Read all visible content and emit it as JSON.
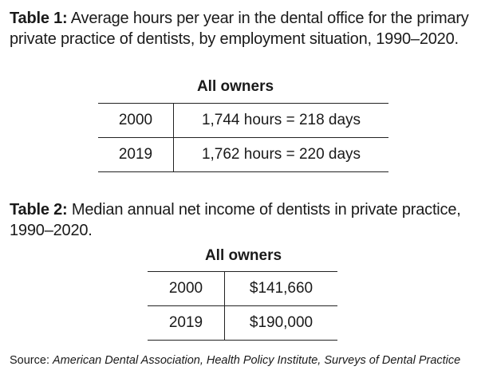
{
  "table1": {
    "label": "Table 1:",
    "caption": " Average hours per year in the dental office for the primary private practice of dentists, by employment situation, 1990–2020.",
    "column_header": "All owners",
    "rows": [
      {
        "year": "2000",
        "value": "1,744 hours = 218 days"
      },
      {
        "year": "2019",
        "value": "1,762 hours = 220 days"
      }
    ]
  },
  "table2": {
    "label": "Table 2:",
    "caption": " Median annual net income of dentists in private practice, 1990–2020.",
    "column_header": "All owners",
    "rows": [
      {
        "year": "2000",
        "value": "$141,660"
      },
      {
        "year": "2019",
        "value": "$190,000"
      }
    ]
  },
  "source": {
    "prefix": "Source: ",
    "publication": "American Dental Association, Health Policy Institute, Surveys of Dental Practice"
  }
}
